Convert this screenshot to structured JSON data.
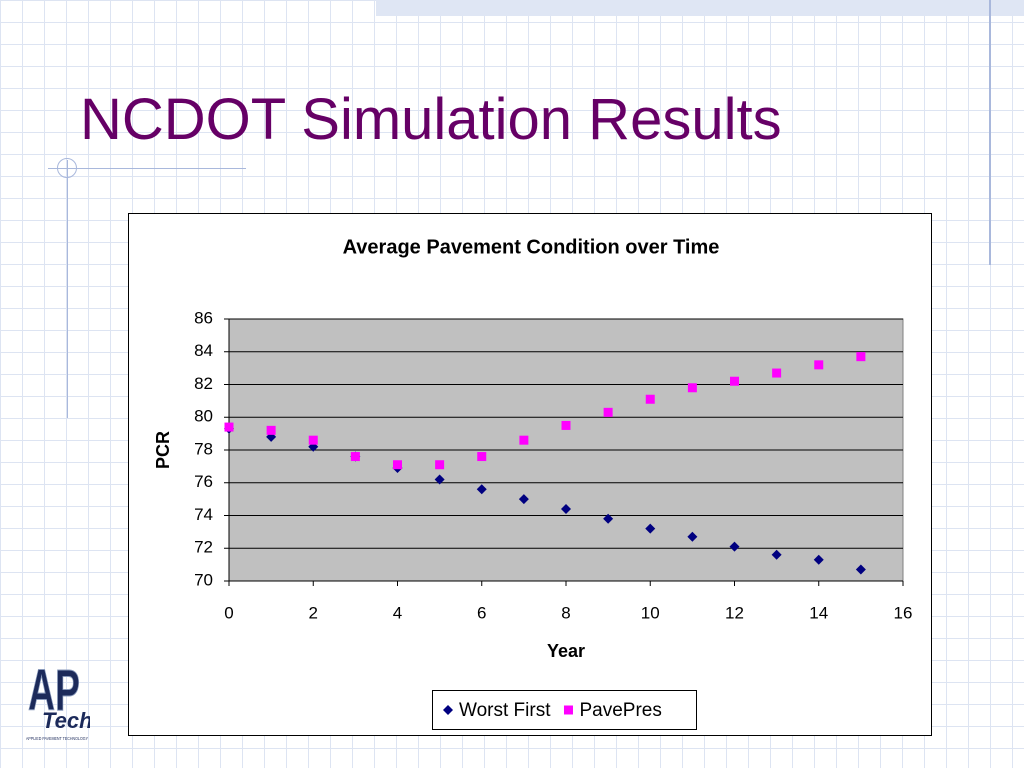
{
  "title": "NCDOT Simulation Results",
  "logo": {
    "name": "AP",
    "sub": "Tech",
    "caption": "APPLIED PAVEMENT TECHNOLOGY"
  },
  "chart_data": {
    "type": "scatter",
    "title": "Average Pavement Condition over Time",
    "x_label": "Year",
    "y_label": "PCR",
    "x": [
      0,
      1,
      2,
      3,
      4,
      5,
      6,
      7,
      8,
      9,
      10,
      11,
      12,
      13,
      14,
      15
    ],
    "series": [
      {
        "name": "Worst First",
        "color": "#000080",
        "marker": "diamond",
        "values": [
          79.3,
          78.8,
          78.2,
          77.6,
          76.9,
          76.2,
          75.6,
          75.0,
          74.4,
          73.8,
          73.2,
          72.7,
          72.1,
          71.6,
          71.3,
          70.7
        ]
      },
      {
        "name": "PavePres",
        "color": "#ff00ff",
        "marker": "square",
        "values": [
          79.4,
          79.2,
          78.6,
          77.6,
          77.1,
          77.1,
          77.6,
          78.6,
          79.5,
          80.3,
          81.1,
          81.8,
          82.2,
          82.7,
          83.2,
          83.7
        ]
      }
    ],
    "xlim": [
      0,
      16
    ],
    "xticks": [
      0,
      2,
      4,
      6,
      8,
      10,
      12,
      14,
      16
    ],
    "ylim": [
      70,
      86
    ],
    "yticks": [
      70,
      72,
      74,
      76,
      78,
      80,
      82,
      84,
      86
    ],
    "grid": true,
    "plot_background": "#c0c0c0",
    "legend": "bottom"
  }
}
